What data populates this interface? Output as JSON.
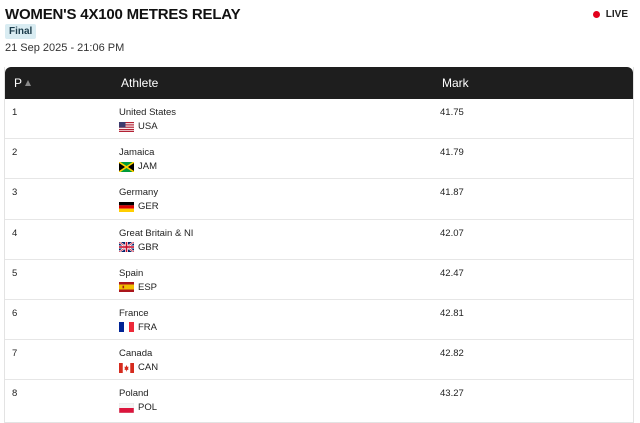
{
  "header": {
    "title": "WOMEN'S 4X100 METRES RELAY",
    "live_label": "LIVE",
    "round_badge": "Final",
    "datetime": "21 Sep 2025 - 21:06 PM"
  },
  "table": {
    "columns": {
      "position": "P",
      "athlete": "Athlete",
      "mark": "Mark"
    },
    "rows": [
      {
        "pos": "1",
        "country": "United States",
        "code": "USA",
        "flag_icon": "usa-flag-icon",
        "mark": "41.75"
      },
      {
        "pos": "2",
        "country": "Jamaica",
        "code": "JAM",
        "flag_icon": "jamaica-flag-icon",
        "mark": "41.79"
      },
      {
        "pos": "3",
        "country": "Germany",
        "code": "GER",
        "flag_icon": "germany-flag-icon",
        "mark": "41.87"
      },
      {
        "pos": "4",
        "country": "Great Britain & NI",
        "code": "GBR",
        "flag_icon": "great-britain-flag-icon",
        "mark": "42.07"
      },
      {
        "pos": "5",
        "country": "Spain",
        "code": "ESP",
        "flag_icon": "spain-flag-icon",
        "mark": "42.47"
      },
      {
        "pos": "6",
        "country": "France",
        "code": "FRA",
        "flag_icon": "france-flag-icon",
        "mark": "42.81"
      },
      {
        "pos": "7",
        "country": "Canada",
        "code": "CAN",
        "flag_icon": "canada-flag-icon",
        "mark": "42.82"
      },
      {
        "pos": "8",
        "country": "Poland",
        "code": "POL",
        "flag_icon": "poland-flag-icon",
        "mark": "43.27"
      }
    ]
  },
  "colors": {
    "header_bg": "#1e1e1e",
    "live_dot": "#e3001b",
    "badge_bg": "#d9ecf2"
  }
}
